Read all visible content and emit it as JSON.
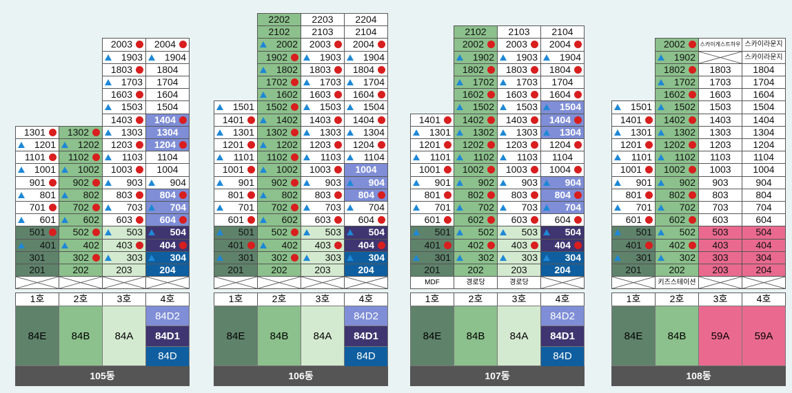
{
  "colors": {
    "dark_green": "#5f826b",
    "mid_green": "#8cc08c",
    "light_green": "#d4ead0",
    "periwinkle": "#7f8ed6",
    "purple": "#3f3570",
    "blue": "#0f5fa0",
    "pink": "#ea6a8f",
    "white": "#ffffff",
    "triangle": "#1e88d6",
    "dot": "#d81e1e",
    "footer_bg": "#555555"
  },
  "legend_icons": [
    "triangle-icon",
    "red-dot-icon"
  ],
  "buildings": [
    {
      "name": "105동",
      "units": [
        "1호",
        "2호",
        "3호",
        "4호"
      ],
      "types": [
        {
          "label": "84E",
          "color": "#5f826b"
        },
        {
          "label": "84B",
          "color": "#8cc08c"
        },
        {
          "label": "84A",
          "color": "#d4ead0"
        },
        {
          "label": "84D2 / 84D1 / 84D",
          "color": "#7f8ed6"
        }
      ],
      "sub_types": [
        "84D2",
        "84D1",
        "84D"
      ],
      "ground_labels": [
        "",
        "",
        "",
        ""
      ]
    },
    {
      "name": "106동",
      "units": [
        "1호",
        "2호",
        "3호",
        "4호"
      ],
      "sub_types": [
        "84D2",
        "84D1",
        "84D"
      ],
      "type_labels": [
        "84E",
        "84B",
        "84A"
      ],
      "ground_labels": [
        "",
        "",
        "",
        ""
      ]
    },
    {
      "name": "107동",
      "units": [
        "1호",
        "2호",
        "3호",
        "4호"
      ],
      "sub_types": [
        "84D2",
        "84D1",
        "84D"
      ],
      "type_labels": [
        "84E",
        "84B",
        "84A"
      ],
      "ground_labels": [
        "MDF",
        "경로당",
        "경로당",
        ""
      ]
    },
    {
      "name": "108동",
      "units": [
        "1호",
        "2호",
        "3호",
        "4호"
      ],
      "type_labels": [
        "84E",
        "84B",
        "59A",
        "59A"
      ],
      "ground_labels": [
        "",
        "키즈스테이션",
        "",
        ""
      ],
      "top_labels": [
        "스카이게스트하우스",
        "스카이라운지",
        "스카이라운지"
      ]
    }
  ],
  "cells_text": {
    "b105": {
      "r20": [
        "",
        "",
        "2003",
        "2004"
      ],
      "r19": [
        "",
        "",
        "1903",
        "1904"
      ],
      "r18": [
        "",
        "",
        "1803",
        "1804"
      ],
      "r17": [
        "",
        "",
        "1703",
        "1704"
      ],
      "r16": [
        "",
        "",
        "1603",
        "1604"
      ],
      "r15": [
        "",
        "",
        "1503",
        "1504"
      ],
      "r14": [
        "",
        "",
        "1403",
        "1404"
      ],
      "r13": [
        "1301",
        "1302",
        "1303",
        "1304"
      ],
      "r12": [
        "1201",
        "1202",
        "1203",
        "1204"
      ],
      "r11": [
        "1101",
        "1102",
        "1103",
        "1104"
      ],
      "r10": [
        "1001",
        "1002",
        "1003",
        "1004"
      ],
      "r9": [
        "901",
        "902",
        "903",
        "904"
      ],
      "r8": [
        "801",
        "802",
        "803",
        "804"
      ],
      "r7": [
        "701",
        "702",
        "703",
        "704"
      ],
      "r6": [
        "601",
        "602",
        "603",
        "604"
      ],
      "r5": [
        "501",
        "502",
        "503",
        "504"
      ],
      "r4": [
        "401",
        "402",
        "403",
        "404"
      ],
      "r3": [
        "301",
        "302",
        "303",
        "304"
      ],
      "r2": [
        "201",
        "202",
        "203",
        "204"
      ]
    },
    "b106": {
      "r22": [
        "",
        "2202",
        "2203",
        "2204"
      ],
      "r21": [
        "",
        "2102",
        "2103",
        "2104"
      ],
      "r20": [
        "",
        "2002",
        "2003",
        "2004"
      ],
      "r19": [
        "",
        "1902",
        "1903",
        "1904"
      ],
      "r18": [
        "",
        "1802",
        "1803",
        "1804"
      ],
      "r17": [
        "",
        "1702",
        "1703",
        "1704"
      ],
      "r16": [
        "",
        "1602",
        "1603",
        "1604"
      ],
      "r15": [
        "1501",
        "1502",
        "1503",
        "1504"
      ],
      "r14": [
        "1401",
        "1402",
        "1403",
        "1404"
      ],
      "r13": [
        "1301",
        "1302",
        "1303",
        "1304"
      ],
      "r12": [
        "1201",
        "1202",
        "1203",
        "1204"
      ],
      "r11": [
        "1101",
        "1102",
        "1103",
        "1104"
      ],
      "r10": [
        "1001",
        "1002",
        "1003",
        "1004"
      ],
      "r9": [
        "901",
        "902",
        "903",
        "904"
      ],
      "r8": [
        "801",
        "802",
        "803",
        "804"
      ],
      "r7": [
        "701",
        "702",
        "703",
        "704"
      ],
      "r6": [
        "601",
        "602",
        "603",
        "604"
      ],
      "r5": [
        "501",
        "502",
        "503",
        "504"
      ],
      "r4": [
        "401",
        "402",
        "403",
        "404"
      ],
      "r3": [
        "301",
        "302",
        "303",
        "304"
      ],
      "r2": [
        "201",
        "202",
        "203",
        "204"
      ]
    },
    "b107": {
      "r21": [
        "",
        "2102",
        "2103",
        "2104"
      ],
      "r20": [
        "",
        "2002",
        "2003",
        "2004"
      ],
      "r19": [
        "",
        "1902",
        "1903",
        "1904"
      ],
      "r18": [
        "",
        "1802",
        "1803",
        "1804"
      ],
      "r17": [
        "",
        "1702",
        "1703",
        "1704"
      ],
      "r16": [
        "",
        "1602",
        "1603",
        "1604"
      ],
      "r15": [
        "",
        "1502",
        "1503",
        "1504"
      ],
      "r14": [
        "1401",
        "1402",
        "1403",
        "1404"
      ],
      "r13": [
        "1301",
        "1302",
        "1303",
        "1304"
      ],
      "r12": [
        "1201",
        "1202",
        "1203",
        "1204"
      ],
      "r11": [
        "1101",
        "1102",
        "1103",
        "1104"
      ],
      "r10": [
        "1001",
        "1002",
        "1003",
        "1004"
      ],
      "r9": [
        "901",
        "902",
        "903",
        "904"
      ],
      "r8": [
        "801",
        "802",
        "803",
        "804"
      ],
      "r7": [
        "701",
        "702",
        "703",
        "704"
      ],
      "r6": [
        "601",
        "602",
        "603",
        "604"
      ],
      "r5": [
        "501",
        "502",
        "503",
        "504"
      ],
      "r4": [
        "401",
        "402",
        "403",
        "404"
      ],
      "r3": [
        "301",
        "302",
        "303",
        "304"
      ],
      "r2": [
        "201",
        "202",
        "203",
        "204"
      ]
    },
    "b108": {
      "r20": [
        "",
        "2002",
        "",
        ""
      ],
      "r19": [
        "",
        "1902",
        "",
        ""
      ],
      "r18": [
        "",
        "1802",
        "1803",
        "1804"
      ],
      "r17": [
        "",
        "1702",
        "1703",
        "1704"
      ],
      "r16": [
        "",
        "1602",
        "1603",
        "1604"
      ],
      "r15": [
        "1501",
        "1502",
        "1503",
        "1504"
      ],
      "r14": [
        "1401",
        "1402",
        "1403",
        "1404"
      ],
      "r13": [
        "1301",
        "1302",
        "1303",
        "1304"
      ],
      "r12": [
        "1201",
        "1202",
        "1203",
        "1204"
      ],
      "r11": [
        "1101",
        "1102",
        "1103",
        "1104"
      ],
      "r10": [
        "1001",
        "1002",
        "1003",
        "1004"
      ],
      "r9": [
        "901",
        "902",
        "903",
        "904"
      ],
      "r8": [
        "801",
        "802",
        "803",
        "804"
      ],
      "r7": [
        "701",
        "702",
        "703",
        "704"
      ],
      "r6": [
        "601",
        "602",
        "603",
        "604"
      ],
      "r5": [
        "501",
        "502",
        "503",
        "504"
      ],
      "r4": [
        "401",
        "402",
        "403",
        "404"
      ],
      "r3": [
        "301",
        "302",
        "303",
        "304"
      ],
      "r2": [
        "201",
        "202",
        "203",
        "204"
      ]
    }
  }
}
